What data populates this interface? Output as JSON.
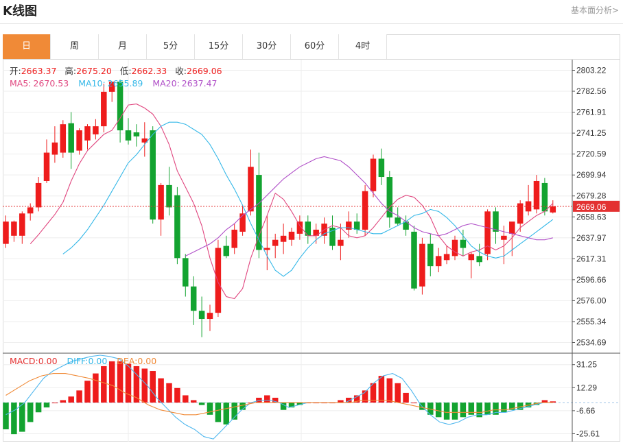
{
  "header": {
    "title": "K线图",
    "link": "基本面分析>"
  },
  "tabs": [
    {
      "label": "日",
      "active": true
    },
    {
      "label": "周",
      "active": false
    },
    {
      "label": "月",
      "active": false
    },
    {
      "label": "5分",
      "active": false
    },
    {
      "label": "15分",
      "active": false
    },
    {
      "label": "30分",
      "active": false
    },
    {
      "label": "60分",
      "active": false
    },
    {
      "label": "4时",
      "active": false
    }
  ],
  "ohlc_info": {
    "open_label": "开:",
    "open": "2663.37",
    "high_label": "高:",
    "high": "2675.20",
    "low_label": "低:",
    "low": "2662.33",
    "close_label": "收:",
    "close": "2669.06"
  },
  "ma_info": {
    "ma5_label": "MA5:",
    "ma5": "2670.53",
    "ma10_label": "MA10:",
    "ma10": "2655.89",
    "ma20_label": "MA20:",
    "ma20": "2637.47"
  },
  "macd_info": {
    "macd_label": "MACD:",
    "macd": "0.00",
    "diff_label": "DIFF:",
    "diff": "0.00",
    "dea_label": "DEA:",
    "dea": "0.00"
  },
  "colors": {
    "up": "#ee1c1c",
    "down": "#13a330",
    "ma5": "#e0467f",
    "ma10": "#35b8e8",
    "ma20": "#b04fc8",
    "diff": "#4fb7ee",
    "dea": "#f08a37",
    "accent": "#f08a37",
    "price_tag": "#e33131"
  },
  "chart_data": [
    {
      "type": "candlestick",
      "ylim": [
        2524.2,
        2813.7
      ],
      "yticks": [
        2803.22,
        2782.56,
        2761.91,
        2741.25,
        2720.59,
        2699.94,
        2679.28,
        2658.63,
        2637.97,
        2617.31,
        2596.66,
        2576.0,
        2555.34,
        2534.69
      ],
      "last_price": "2669.06",
      "candles": [
        [
          2632,
          2660,
          2628,
          2654
        ],
        [
          2640,
          2655,
          2634,
          2654
        ],
        [
          2640,
          2664,
          2632,
          2662
        ],
        [
          2662,
          2672,
          2655,
          2668
        ],
        [
          2668,
          2698,
          2664,
          2692
        ],
        [
          2694,
          2735,
          2692,
          2722
        ],
        [
          2720,
          2748,
          2712,
          2732
        ],
        [
          2722,
          2754,
          2717,
          2750
        ],
        [
          2751,
          2762,
          2706,
          2722
        ],
        [
          2724,
          2746,
          2720,
          2744
        ],
        [
          2734,
          2750,
          2725,
          2748
        ],
        [
          2740,
          2755,
          2735,
          2748
        ],
        [
          2748,
          2790,
          2742,
          2782
        ],
        [
          2782,
          2792,
          2772,
          2792
        ],
        [
          2792,
          2794,
          2732,
          2744
        ],
        [
          2744,
          2756,
          2730,
          2734
        ],
        [
          2742,
          2750,
          2728,
          2738
        ],
        [
          2732,
          2752,
          2718,
          2736
        ],
        [
          2744,
          2748,
          2652,
          2656
        ],
        [
          2656,
          2692,
          2640,
          2690
        ],
        [
          2690,
          2708,
          2660,
          2668
        ],
        [
          2680,
          2688,
          2612,
          2618
        ],
        [
          2618,
          2622,
          2580,
          2590
        ],
        [
          2590,
          2600,
          2552,
          2566
        ],
        [
          2566,
          2580,
          2540,
          2558
        ],
        [
          2558,
          2572,
          2546,
          2564
        ],
        [
          2564,
          2636,
          2560,
          2628
        ],
        [
          2630,
          2640,
          2618,
          2620
        ],
        [
          2628,
          2652,
          2622,
          2646
        ],
        [
          2644,
          2670,
          2640,
          2662
        ],
        [
          2664,
          2725,
          2660,
          2708
        ],
        [
          2700,
          2722,
          2618,
          2626
        ],
        [
          2626,
          2660,
          2606,
          2628
        ],
        [
          2630,
          2642,
          2618,
          2636
        ],
        [
          2634,
          2652,
          2622,
          2640
        ],
        [
          2636,
          2648,
          2630,
          2644
        ],
        [
          2642,
          2660,
          2636,
          2654
        ],
        [
          2654,
          2660,
          2632,
          2640
        ],
        [
          2640,
          2652,
          2632,
          2646
        ],
        [
          2640,
          2658,
          2632,
          2652
        ],
        [
          2648,
          2660,
          2626,
          2630
        ],
        [
          2630,
          2652,
          2616,
          2636
        ],
        [
          2646,
          2664,
          2638,
          2654
        ],
        [
          2654,
          2662,
          2642,
          2646
        ],
        [
          2646,
          2690,
          2640,
          2684
        ],
        [
          2684,
          2720,
          2678,
          2716
        ],
        [
          2716,
          2726,
          2690,
          2698
        ],
        [
          2698,
          2704,
          2648,
          2658
        ],
        [
          2658,
          2668,
          2650,
          2652
        ],
        [
          2654,
          2660,
          2640,
          2646
        ],
        [
          2644,
          2650,
          2586,
          2588
        ],
        [
          2590,
          2638,
          2582,
          2632
        ],
        [
          2632,
          2642,
          2600,
          2610
        ],
        [
          2610,
          2628,
          2604,
          2620
        ],
        [
          2616,
          2630,
          2612,
          2622
        ],
        [
          2620,
          2640,
          2616,
          2636
        ],
        [
          2636,
          2646,
          2620,
          2628
        ],
        [
          2616,
          2624,
          2598,
          2622
        ],
        [
          2620,
          2632,
          2610,
          2614
        ],
        [
          2622,
          2666,
          2616,
          2664
        ],
        [
          2664,
          2668,
          2632,
          2644
        ],
        [
          2636,
          2650,
          2612,
          2640
        ],
        [
          2642,
          2652,
          2620,
          2654
        ],
        [
          2652,
          2675,
          2644,
          2672
        ],
        [
          2664,
          2690,
          2660,
          2674
        ],
        [
          2666,
          2700,
          2662,
          2694
        ],
        [
          2692,
          2697,
          2660,
          2664
        ],
        [
          2663,
          2675,
          2662,
          2669
        ]
      ],
      "ma5": [
        2632,
        2641,
        2651,
        2661,
        2673,
        2694,
        2711,
        2724,
        2732,
        2740,
        2744,
        2756,
        2769,
        2770,
        2766,
        2760,
        2748,
        2730,
        2704,
        2688,
        2672,
        2650,
        2618,
        2594,
        2580,
        2578,
        2588,
        2618,
        2640,
        2660,
        2682,
        2676,
        2664,
        2650,
        2640,
        2640,
        2646,
        2650,
        2648,
        2640,
        2638,
        2640,
        2648,
        2658,
        2668,
        2676,
        2680,
        2678,
        2670,
        2658,
        2640,
        2630,
        2624,
        2620,
        2624,
        2626,
        2630,
        2626,
        2630,
        2638,
        2648,
        2654,
        2660,
        2664,
        2672
      ],
      "ma10": [
        2622,
        2628,
        2636,
        2646,
        2658,
        2670,
        2684,
        2698,
        2712,
        2720,
        2730,
        2740,
        2748,
        2752,
        2752,
        2750,
        2745,
        2740,
        2730,
        2716,
        2700,
        2686,
        2670,
        2652,
        2636,
        2620,
        2606,
        2600,
        2606,
        2618,
        2628,
        2636,
        2642,
        2645,
        2648,
        2648,
        2646,
        2644,
        2642,
        2642,
        2646,
        2650,
        2654,
        2660,
        2662,
        2666,
        2664,
        2658,
        2650,
        2640,
        2630,
        2624,
        2620,
        2618,
        2620,
        2626,
        2632,
        2638,
        2644,
        2650,
        2656
      ],
      "ma20": [
        2620,
        2624,
        2628,
        2632,
        2638,
        2646,
        2652,
        2660,
        2666,
        2672,
        2680,
        2688,
        2696,
        2702,
        2708,
        2712,
        2716,
        2718,
        2716,
        2714,
        2708,
        2700,
        2692,
        2682,
        2672,
        2664,
        2660,
        2654,
        2648,
        2644,
        2642,
        2640,
        2642,
        2646,
        2650,
        2652,
        2650,
        2648,
        2646,
        2644,
        2642,
        2640,
        2638,
        2636,
        2636,
        2638
      ],
      "macd": {
        "ylim": [
          -31,
          39
        ],
        "yticks": [
          31.25,
          12.29,
          -6.66,
          -25.61
        ],
        "hist": [
          -22,
          -26,
          -24,
          -16,
          -8,
          -4,
          0,
          2,
          5,
          10,
          18,
          24,
          30,
          34,
          34,
          32,
          30,
          28,
          26,
          20,
          16,
          12,
          6,
          2,
          -2,
          -10,
          -16,
          -18,
          -14,
          -6,
          0,
          4,
          6,
          4,
          -6,
          -4,
          -2,
          0,
          0,
          0,
          0,
          2,
          4,
          6,
          10,
          16,
          22,
          20,
          16,
          8,
          0,
          -6,
          -10,
          -12,
          -14,
          -14,
          -12,
          -10,
          -12,
          -10,
          -10,
          -8,
          -6,
          -6,
          -4,
          -2,
          2,
          1
        ],
        "diff": [
          -10,
          -6,
          0,
          10,
          20,
          26,
          30,
          34,
          36,
          38,
          39,
          38,
          36,
          30,
          22,
          14,
          4,
          -4,
          -12,
          -18,
          -22,
          -28,
          -30,
          -22,
          -14,
          -6,
          0,
          2,
          2,
          0,
          -4,
          -2,
          0,
          0,
          0,
          0,
          0,
          4,
          8,
          16,
          22,
          24,
          20,
          10,
          -2,
          -10,
          -16,
          -18,
          -16,
          -12,
          -10,
          -10,
          -8,
          -8,
          -6,
          -4,
          -2,
          0,
          0
        ],
        "dea": [
          6,
          12,
          18,
          22,
          24,
          24,
          22,
          20,
          17,
          14,
          8,
          4,
          -2,
          -6,
          -8,
          -10,
          -10,
          -8,
          -6,
          -4,
          -2,
          0,
          0,
          0,
          0,
          0,
          0,
          0,
          0,
          0,
          2,
          2,
          2,
          0,
          -2,
          -4,
          -6,
          -8,
          -8,
          -8,
          -8,
          -6,
          -6,
          -4,
          -2,
          0,
          0
        ]
      }
    }
  ]
}
